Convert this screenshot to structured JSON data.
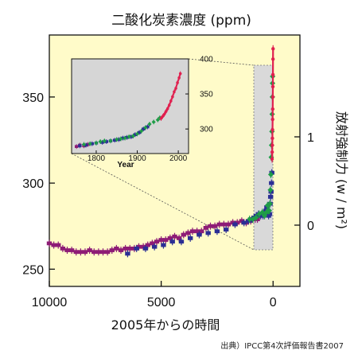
{
  "chart_data": {
    "type": "scatter",
    "title": "二酸化炭素濃度 (ppm)",
    "xlabel": "2005年からの時間",
    "ylabel_right": "放射強制力 (w / m²)",
    "source": "出典）IPCC第4次評価報告書2007",
    "x_ticks": [
      {
        "value": 10000,
        "label": "10000"
      },
      {
        "value": 5000,
        "label": "5000"
      },
      {
        "value": 0,
        "label": "0"
      }
    ],
    "y_ticks_left": [
      {
        "value": 350,
        "label": "350"
      },
      {
        "value": 300,
        "label": "300"
      },
      {
        "value": 250,
        "label": "250"
      }
    ],
    "y_ticks_right": [
      {
        "value": 1,
        "label": "1"
      },
      {
        "value": 0,
        "label": "0"
      }
    ],
    "xlim": [
      10000,
      -1200
    ],
    "ylim": [
      240,
      386
    ],
    "colors": {
      "background": "#fffbc9",
      "purple": "#8e1c76",
      "blue": "#2b2e94",
      "green": "#1f9d47",
      "red": "#e0204f",
      "inset_bg": "#d6d6d6",
      "highlight_box": "#d9d9d9"
    },
    "series": [
      {
        "color_key": "purple",
        "points": [
          [
            10000,
            265
          ],
          [
            9800,
            264
          ],
          [
            9600,
            264
          ],
          [
            9400,
            262
          ],
          [
            9200,
            261
          ],
          [
            9000,
            261
          ],
          [
            8800,
            260
          ],
          [
            8600,
            260
          ],
          [
            8400,
            260
          ],
          [
            8200,
            261
          ],
          [
            8000,
            260
          ],
          [
            7800,
            260
          ],
          [
            7600,
            260
          ],
          [
            7400,
            260
          ],
          [
            7200,
            261
          ],
          [
            7000,
            262
          ],
          [
            6800,
            261
          ],
          [
            6600,
            262
          ],
          [
            6400,
            262
          ],
          [
            6200,
            262
          ],
          [
            6000,
            263
          ],
          [
            5800,
            263
          ],
          [
            5600,
            264
          ],
          [
            5400,
            265
          ],
          [
            5200,
            266
          ],
          [
            5000,
            267
          ],
          [
            4800,
            267
          ],
          [
            4600,
            268
          ],
          [
            4400,
            269
          ],
          [
            4200,
            268
          ],
          [
            4000,
            270
          ],
          [
            3800,
            271
          ],
          [
            3600,
            272
          ],
          [
            3400,
            272
          ],
          [
            3200,
            272
          ],
          [
            3000,
            274
          ],
          [
            2800,
            275
          ],
          [
            2600,
            275
          ],
          [
            2400,
            276
          ],
          [
            2200,
            276
          ],
          [
            2000,
            276
          ],
          [
            1800,
            277
          ],
          [
            1600,
            277
          ],
          [
            1400,
            278
          ],
          [
            1200,
            277
          ],
          [
            1000,
            278
          ],
          [
            900,
            279
          ],
          [
            800,
            279
          ],
          [
            700,
            279
          ]
        ]
      },
      {
        "color_key": "blue",
        "points": [
          [
            6500,
            259
          ],
          [
            6100,
            262
          ],
          [
            5700,
            262
          ],
          [
            5300,
            263
          ],
          [
            4900,
            264
          ],
          [
            4500,
            266
          ],
          [
            4100,
            266
          ],
          [
            3700,
            268
          ],
          [
            3300,
            270
          ],
          [
            2900,
            271
          ],
          [
            2500,
            272
          ],
          [
            2100,
            273
          ],
          [
            1700,
            276
          ],
          [
            1300,
            277
          ],
          [
            1100,
            278
          ],
          [
            950,
            279
          ],
          [
            850,
            280
          ],
          [
            750,
            281
          ],
          [
            650,
            282
          ],
          [
            550,
            281
          ],
          [
            450,
            281
          ],
          [
            380,
            283
          ],
          [
            320,
            284
          ],
          [
            280,
            286
          ],
          [
            240,
            284
          ],
          [
            200,
            281
          ],
          [
            160,
            282
          ],
          [
            130,
            288
          ],
          [
            110,
            292
          ],
          [
            90,
            295
          ],
          [
            70,
            300
          ],
          [
            55,
            306
          ]
        ]
      },
      {
        "color_key": "green",
        "points": [
          [
            1050,
            279
          ],
          [
            900,
            279
          ],
          [
            760,
            280
          ],
          [
            620,
            282
          ],
          [
            480,
            283
          ],
          [
            380,
            281
          ],
          [
            300,
            283
          ],
          [
            250,
            287
          ],
          [
            210,
            284
          ],
          [
            170,
            284
          ],
          [
            140,
            288
          ],
          [
            120,
            296
          ],
          [
            100,
            305
          ],
          [
            80,
            315
          ],
          [
            65,
            322
          ],
          [
            50,
            330
          ],
          [
            40,
            340
          ],
          [
            30,
            350
          ],
          [
            25,
            358
          ],
          [
            20,
            362
          ]
        ]
      },
      {
        "color_key": "red",
        "points": [
          [
            44,
            314
          ],
          [
            40,
            318
          ],
          [
            35,
            322
          ],
          [
            30,
            326
          ],
          [
            25,
            331
          ],
          [
            20,
            337
          ],
          [
            16,
            343
          ],
          [
            12,
            350
          ],
          [
            9,
            356
          ],
          [
            6,
            363
          ],
          [
            3,
            372
          ],
          [
            0,
            378
          ]
        ]
      }
    ],
    "inset": {
      "x_axis_title": "Year",
      "x_ticks": [
        {
          "value": 1800,
          "label": "1800"
        },
        {
          "value": 1900,
          "label": "1900"
        },
        {
          "value": 2000,
          "label": "2000"
        }
      ],
      "y_ticks": [
        {
          "value": 400,
          "label": "400"
        },
        {
          "value": 350,
          "label": "350"
        },
        {
          "value": 300,
          "label": "300"
        }
      ],
      "xlim": [
        1740,
        2025
      ],
      "ylim": [
        265,
        400
      ],
      "series": [
        {
          "color_key": "purple",
          "points": [
            [
              1752,
              275
            ],
            [
              1760,
              277
            ],
            [
              1770,
              276
            ],
            [
              1780,
              278
            ]
          ]
        },
        {
          "color_key": "blue",
          "points": [
            [
              1760,
              276
            ],
            [
              1775,
              277
            ],
            [
              1790,
              279
            ],
            [
              1800,
              280
            ],
            [
              1815,
              281
            ],
            [
              1825,
              282
            ],
            [
              1835,
              283
            ],
            [
              1845,
              284
            ],
            [
              1855,
              285
            ],
            [
              1865,
              287
            ],
            [
              1875,
              288
            ],
            [
              1885,
              289
            ],
            [
              1895,
              292
            ],
            [
              1905,
              295
            ],
            [
              1915,
              300
            ],
            [
              1925,
              303
            ]
          ]
        },
        {
          "color_key": "green",
          "points": [
            [
              1770,
              278
            ],
            [
              1785,
              279
            ],
            [
              1800,
              280
            ],
            [
              1810,
              282
            ],
            [
              1820,
              283
            ],
            [
              1835,
              283
            ],
            [
              1850,
              285
            ],
            [
              1860,
              286
            ],
            [
              1870,
              287
            ],
            [
              1880,
              289
            ],
            [
              1890,
              290
            ],
            [
              1900,
              293
            ],
            [
              1910,
              297
            ],
            [
              1920,
              302
            ],
            [
              1930,
              307
            ],
            [
              1940,
              310
            ],
            [
              1950,
              313
            ],
            [
              1955,
              316
            ]
          ]
        },
        {
          "color_key": "red",
          "points": [
            [
              1958,
              315
            ],
            [
              1962,
              318
            ],
            [
              1966,
              321
            ],
            [
              1970,
              325
            ],
            [
              1974,
              329
            ],
            [
              1978,
              334
            ],
            [
              1982,
              340
            ],
            [
              1986,
              346
            ],
            [
              1990,
              353
            ],
            [
              1994,
              358
            ],
            [
              1998,
              366
            ],
            [
              2002,
              373
            ],
            [
              2005,
              379
            ]
          ]
        }
      ]
    }
  }
}
